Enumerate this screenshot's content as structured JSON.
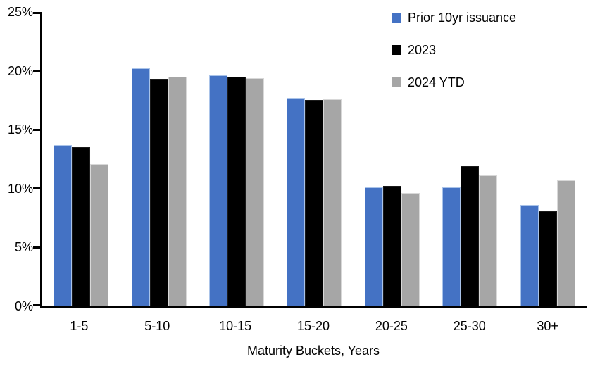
{
  "chart_data": {
    "type": "bar",
    "title": "",
    "categories": [
      "1-5",
      "5-10",
      "10-15",
      "15-20",
      "20-25",
      "25-30",
      "30+"
    ],
    "series": [
      {
        "name": "Prior 10yr issuance",
        "color": "#4472C4",
        "edge_color": "#A9C3E9",
        "values": [
          13.7,
          20.2,
          19.6,
          17.7,
          10.1,
          10.1,
          8.6
        ]
      },
      {
        "name": "2023",
        "color": "#000000",
        "edge_color": "#1A1A1A",
        "values": [
          13.5,
          19.3,
          19.5,
          17.5,
          10.2,
          11.9,
          8.1
        ]
      },
      {
        "name": "2024 YTD",
        "color": "#A6A6A6",
        "edge_color": "#D8D8D8",
        "values": [
          12.1,
          19.5,
          19.4,
          17.6,
          9.6,
          11.1,
          10.7
        ]
      }
    ],
    "xlabel": "Maturity Buckets, Years",
    "ylabel": "",
    "ylim": [
      0,
      25
    ],
    "yticks": [
      0,
      5,
      10,
      15,
      20,
      25
    ],
    "ytick_labels": [
      "0%",
      "5%",
      "10%",
      "15%",
      "20%",
      "25%"
    ],
    "legend_position": "top-right",
    "grid": false,
    "axis_color": "#000000",
    "background": "#FFFFFF"
  }
}
